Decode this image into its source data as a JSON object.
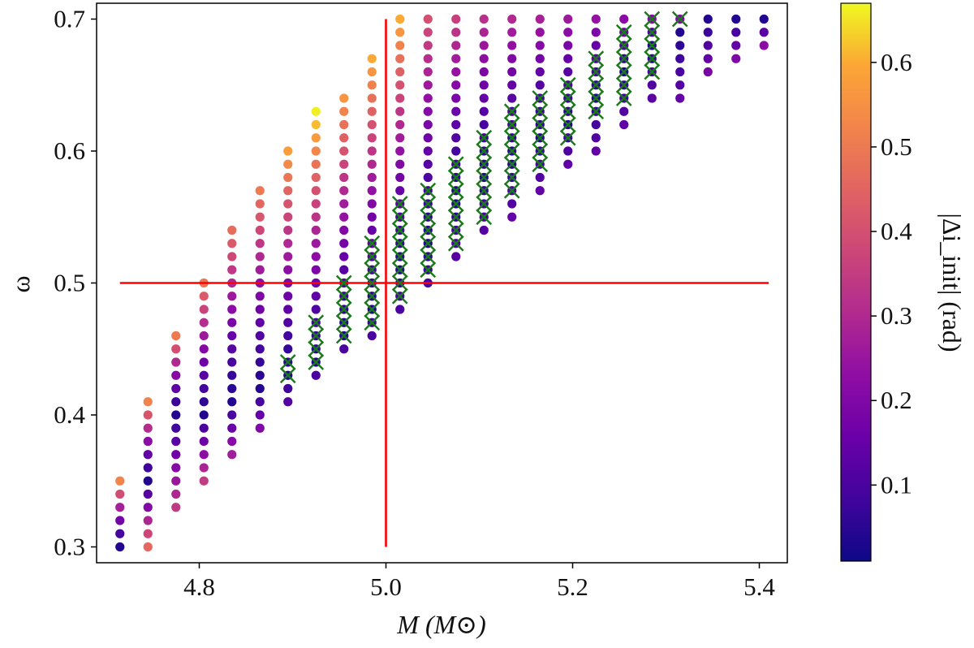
{
  "chart_data": {
    "type": "scatter",
    "xlabel": "M (M⊙)",
    "ylabel": "ω",
    "xlim": [
      4.69,
      5.43
    ],
    "ylim": [
      0.288,
      0.712
    ],
    "xticks": [
      4.8,
      5.0,
      5.2,
      5.4
    ],
    "xtick_labels": [
      "4.8",
      "5.0",
      "5.2",
      "5.4"
    ],
    "yticks": [
      0.3,
      0.4,
      0.5,
      0.6,
      0.7
    ],
    "ytick_labels": [
      "0.3",
      "0.4",
      "0.5",
      "0.6",
      "0.7"
    ],
    "grid": false,
    "colormap": "plasma",
    "colorbar": {
      "label": "|Δi_init| (rad)",
      "range": [
        0.01,
        0.67
      ],
      "ticks": [
        0.1,
        0.2,
        0.3,
        0.4,
        0.5,
        0.6
      ],
      "tick_labels": [
        "0.1",
        "0.2",
        "0.3",
        "0.4",
        "0.5",
        "0.6"
      ]
    },
    "reference_lines": [
      {
        "orientation": "vertical",
        "x": 5.0,
        "y_range": [
          0.3,
          0.7
        ],
        "color": "#ff0000"
      },
      {
        "orientation": "horizontal",
        "y": 0.5,
        "x_range": [
          4.715,
          5.41
        ],
        "color": "#ff0000"
      }
    ],
    "point_grid": {
      "omega_step": 0.01,
      "description": "Each column is one mass value; points run from omega_min to omega_max in steps of 0.01. Color encodes |Δi_init|, with the lowest values near 'valley' and rising toward both ends.",
      "columns": [
        {
          "M": 4.715,
          "omega_min": 0.3,
          "omega_max": 0.35,
          "valley": 0.3,
          "c_low": 0.48,
          "c_high": 0.52
        },
        {
          "M": 4.745,
          "omega_min": 0.3,
          "omega_max": 0.41,
          "valley": 0.35,
          "c_low": 0.46,
          "c_high": 0.52
        },
        {
          "M": 4.775,
          "omega_min": 0.33,
          "omega_max": 0.46,
          "valley": 0.4,
          "c_low": 0.34,
          "c_high": 0.5
        },
        {
          "M": 4.805,
          "omega_min": 0.35,
          "omega_max": 0.5,
          "valley": 0.4,
          "c_low": 0.35,
          "c_high": 0.49
        },
        {
          "M": 4.835,
          "omega_min": 0.37,
          "omega_max": 0.54,
          "valley": 0.41,
          "c_low": 0.27,
          "c_high": 0.47
        },
        {
          "M": 4.865,
          "omega_min": 0.39,
          "omega_max": 0.57,
          "valley": 0.42,
          "c_low": 0.2,
          "c_high": 0.5
        },
        {
          "M": 4.895,
          "omega_min": 0.41,
          "omega_max": 0.6,
          "valley": 0.43,
          "c_low": 0.12,
          "c_high": 0.58
        },
        {
          "M": 4.925,
          "omega_min": 0.43,
          "omega_max": 0.63,
          "valley": 0.44,
          "c_low": 0.1,
          "c_high": 0.66
        },
        {
          "M": 4.955,
          "omega_min": 0.45,
          "omega_max": 0.64,
          "valley": 0.46,
          "c_low": 0.1,
          "c_high": 0.56
        },
        {
          "M": 4.985,
          "omega_min": 0.46,
          "omega_max": 0.67,
          "valley": 0.48,
          "c_low": 0.1,
          "c_high": 0.6
        },
        {
          "M": 5.015,
          "omega_min": 0.48,
          "omega_max": 0.7,
          "valley": 0.51,
          "c_low": 0.1,
          "c_high": 0.6
        },
        {
          "M": 5.045,
          "omega_min": 0.5,
          "omega_max": 0.7,
          "valley": 0.53,
          "c_low": 0.1,
          "c_high": 0.4
        },
        {
          "M": 5.075,
          "omega_min": 0.52,
          "omega_max": 0.7,
          "valley": 0.56,
          "c_low": 0.12,
          "c_high": 0.36
        },
        {
          "M": 5.105,
          "omega_min": 0.54,
          "omega_max": 0.7,
          "valley": 0.58,
          "c_low": 0.12,
          "c_high": 0.32
        },
        {
          "M": 5.135,
          "omega_min": 0.55,
          "omega_max": 0.7,
          "valley": 0.59,
          "c_low": 0.14,
          "c_high": 0.3
        },
        {
          "M": 5.165,
          "omega_min": 0.57,
          "omega_max": 0.7,
          "valley": 0.61,
          "c_low": 0.14,
          "c_high": 0.28
        },
        {
          "M": 5.195,
          "omega_min": 0.59,
          "omega_max": 0.7,
          "valley": 0.62,
          "c_low": 0.14,
          "c_high": 0.26
        },
        {
          "M": 5.225,
          "omega_min": 0.6,
          "omega_max": 0.7,
          "valley": 0.64,
          "c_low": 0.14,
          "c_high": 0.24
        },
        {
          "M": 5.255,
          "omega_min": 0.62,
          "omega_max": 0.7,
          "valley": 0.66,
          "c_low": 0.14,
          "c_high": 0.22
        },
        {
          "M": 5.285,
          "omega_min": 0.64,
          "omega_max": 0.7,
          "valley": 0.68,
          "c_low": 0.13,
          "c_high": 0.2
        },
        {
          "M": 5.315,
          "omega_min": 0.64,
          "omega_max": 0.7,
          "valley": 0.69,
          "c_low": 0.14,
          "c_high": 0.2
        },
        {
          "M": 5.345,
          "omega_min": 0.66,
          "omega_max": 0.7,
          "valley": 0.7,
          "c_low": 0.18,
          "c_high": 0.2
        },
        {
          "M": 5.375,
          "omega_min": 0.67,
          "omega_max": 0.7,
          "valley": 0.7,
          "c_low": 0.2,
          "c_high": 0.2
        },
        {
          "M": 5.405,
          "omega_min": 0.68,
          "omega_max": 0.7,
          "valley": 0.7,
          "c_low": 0.22,
          "c_high": 0.2
        }
      ]
    },
    "highlighted_markers": {
      "marker": "x",
      "color": "#1a7a1a",
      "description": "Green x markers over points in a diagonal band",
      "ranges": [
        {
          "M": 4.895,
          "omega_min": 0.43,
          "omega_max": 0.44
        },
        {
          "M": 4.925,
          "omega_min": 0.44,
          "omega_max": 0.47
        },
        {
          "M": 4.955,
          "omega_min": 0.46,
          "omega_max": 0.5
        },
        {
          "M": 4.985,
          "omega_min": 0.47,
          "omega_max": 0.53
        },
        {
          "M": 5.015,
          "omega_min": 0.49,
          "omega_max": 0.56
        },
        {
          "M": 5.045,
          "omega_min": 0.51,
          "omega_max": 0.57
        },
        {
          "M": 5.075,
          "omega_min": 0.53,
          "omega_max": 0.59
        },
        {
          "M": 5.105,
          "omega_min": 0.55,
          "omega_max": 0.61
        },
        {
          "M": 5.135,
          "omega_min": 0.57,
          "omega_max": 0.63
        },
        {
          "M": 5.165,
          "omega_min": 0.59,
          "omega_max": 0.64
        },
        {
          "M": 5.195,
          "omega_min": 0.61,
          "omega_max": 0.65
        },
        {
          "M": 5.225,
          "omega_min": 0.63,
          "omega_max": 0.67
        },
        {
          "M": 5.255,
          "omega_min": 0.64,
          "omega_max": 0.69
        },
        {
          "M": 5.285,
          "omega_min": 0.66,
          "omega_max": 0.7
        },
        {
          "M": 5.315,
          "omega_min": 0.7,
          "omega_max": 0.7
        }
      ]
    }
  }
}
